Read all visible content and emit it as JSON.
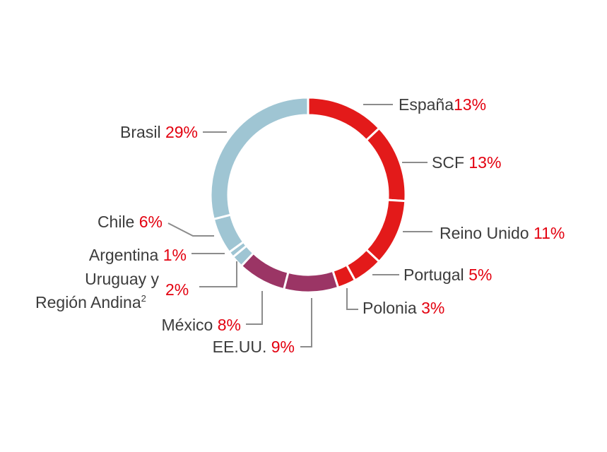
{
  "chart_data": {
    "type": "pie",
    "style": "donut",
    "series": [
      {
        "label": "España",
        "value": 13,
        "display": "13%",
        "color": "#e31a1a"
      },
      {
        "label": "SCF",
        "value": 13,
        "display": "13%",
        "color": "#e31a1a"
      },
      {
        "label": "Reino Unido",
        "value": 11,
        "display": "11%",
        "color": "#e31a1a"
      },
      {
        "label": "Portugal",
        "value": 5,
        "display": "5%",
        "color": "#e31a1a"
      },
      {
        "label": "Polonia",
        "value": 3,
        "display": "3%",
        "color": "#e31a1a"
      },
      {
        "label": "EE.UU.",
        "value": 9,
        "display": "9%",
        "color": "#9b3565"
      },
      {
        "label": "México",
        "value": 8,
        "display": "8%",
        "color": "#9b3565"
      },
      {
        "label": "Uruguay y Región Andina",
        "label_line1": "Uruguay y",
        "label_line2": "Región Andina",
        "footnote": "2",
        "value": 2,
        "display": "2%",
        "color": "#9fc5d3"
      },
      {
        "label": "Argentina",
        "value": 1,
        "display": "1%",
        "color": "#9fc5d3"
      },
      {
        "label": "Chile",
        "value": 6,
        "display": "6%",
        "color": "#9fc5d3"
      },
      {
        "label": "Brasil",
        "value": 29,
        "display": "29%",
        "color": "#9fc5d3"
      }
    ]
  }
}
